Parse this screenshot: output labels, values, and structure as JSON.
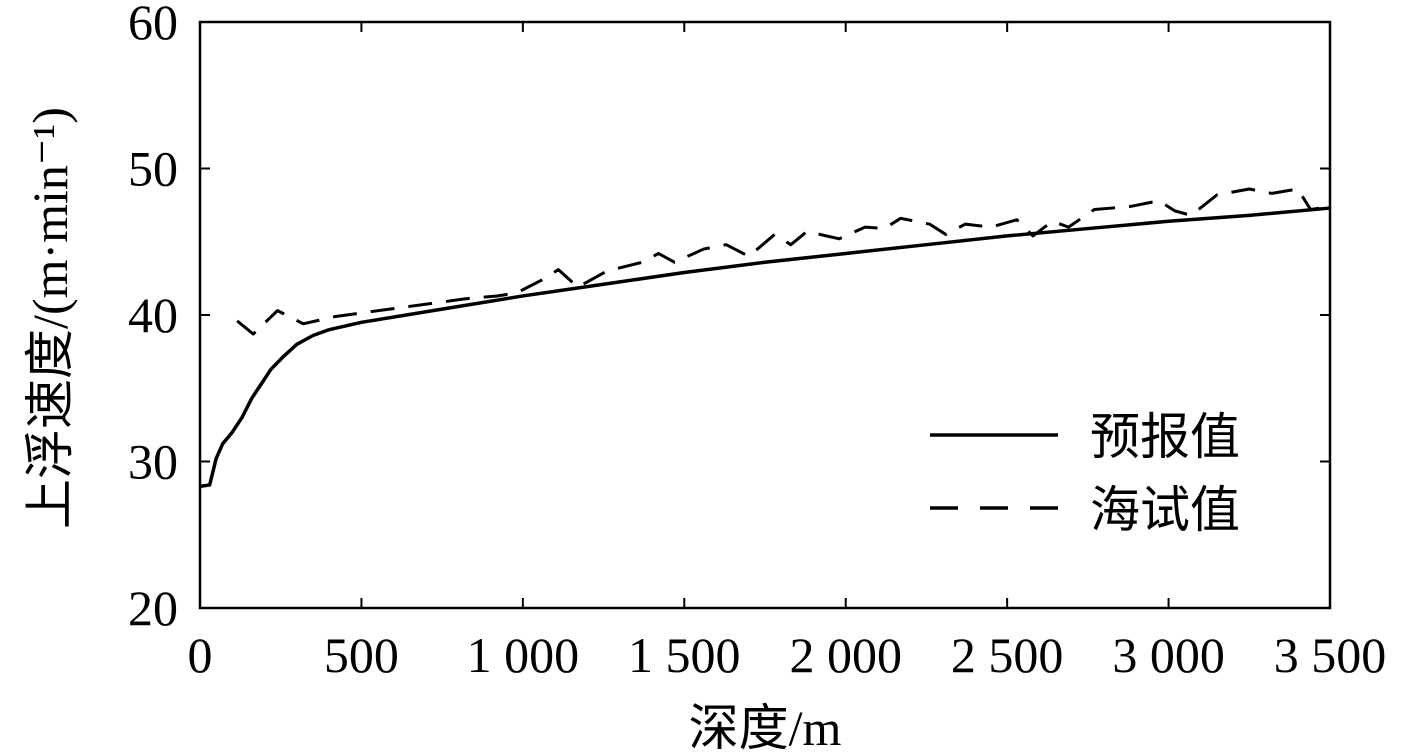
{
  "chart_data": {
    "type": "line",
    "xlabel": "深度/m",
    "ylabel": "上浮速度/(m·min⁻¹)",
    "xlim": [
      0,
      3500
    ],
    "ylim": [
      20,
      60
    ],
    "xticks": [
      0,
      500,
      1000,
      1500,
      2000,
      2500,
      3000,
      3500
    ],
    "xticklabels": [
      "0",
      "500",
      "1 000",
      "1 500",
      "2 000",
      "2 500",
      "3 000",
      "3 500"
    ],
    "yticks": [
      20,
      30,
      40,
      50,
      60
    ],
    "yticklabels": [
      "20",
      "30",
      "40",
      "50",
      "60"
    ],
    "grid": false,
    "legend": "lower-right",
    "series": [
      {
        "name": "预报值",
        "style": "solid",
        "color": "#000000",
        "x": [
          0,
          30,
          50,
          70,
          100,
          130,
          160,
          190,
          220,
          260,
          300,
          350,
          400,
          500,
          750,
          1000,
          1250,
          1500,
          1750,
          2000,
          2250,
          2500,
          2750,
          3000,
          3250,
          3500
        ],
        "y": [
          28.3,
          28.4,
          30.2,
          31.2,
          32.0,
          33.0,
          34.3,
          35.3,
          36.3,
          37.2,
          38.0,
          38.6,
          39.0,
          39.5,
          40.4,
          41.3,
          42.1,
          42.9,
          43.6,
          44.2,
          44.8,
          45.4,
          45.9,
          46.4,
          46.8,
          47.3
        ]
      },
      {
        "name": "海试值",
        "style": "dashed",
        "color": "#000000",
        "x": [
          115,
          165,
          240,
          320,
          420,
          520,
          620,
          720,
          820,
          920,
          980,
          1060,
          1110,
          1170,
          1260,
          1370,
          1420,
          1470,
          1560,
          1630,
          1700,
          1780,
          1830,
          1880,
          1980,
          2060,
          2120,
          2170,
          2260,
          2310,
          2370,
          2450,
          2530,
          2580,
          2640,
          2690,
          2770,
          2880,
          2970,
          3020,
          3070,
          3150,
          3250,
          3320,
          3400,
          3440,
          3500
        ],
        "y": [
          39.6,
          38.7,
          40.3,
          39.4,
          39.9,
          40.2,
          40.5,
          40.8,
          41.1,
          41.3,
          41.5,
          42.4,
          43.1,
          41.9,
          43.0,
          43.6,
          44.2,
          43.6,
          44.5,
          44.8,
          44.0,
          45.5,
          44.8,
          45.7,
          45.2,
          46.0,
          45.9,
          46.6,
          46.2,
          45.5,
          46.2,
          46.0,
          46.5,
          45.4,
          46.4,
          46.0,
          47.2,
          47.4,
          47.8,
          47.1,
          46.8,
          48.2,
          48.6,
          48.3,
          48.6,
          47.2,
          47.4
        ]
      }
    ]
  }
}
